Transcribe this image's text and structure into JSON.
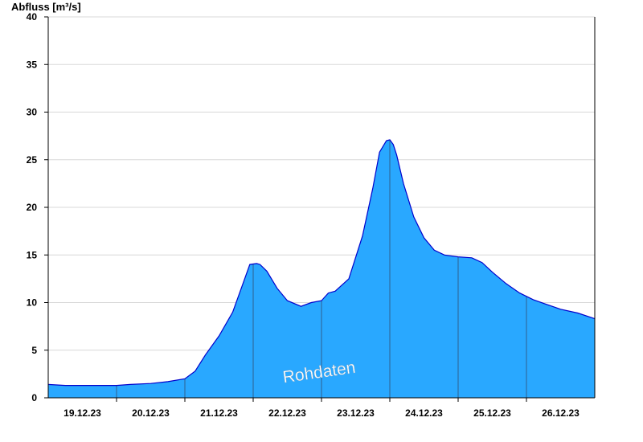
{
  "chart_data": {
    "type": "area",
    "ylabel": "Abfluss [m³/s]",
    "xlabel": "",
    "title": "",
    "ylim": [
      0,
      40
    ],
    "xlim": [
      0,
      8
    ],
    "yticks": [
      0,
      5,
      10,
      15,
      20,
      25,
      30,
      35,
      40
    ],
    "x_tick_labels": [
      "19.12.23",
      "20.12.23",
      "21.12.23",
      "22.12.23",
      "23.12.23",
      "24.12.23",
      "25.12.23",
      "26.12.23"
    ],
    "x_units": "days since start of plotted period",
    "grid": true,
    "annotation": "Rohdaten",
    "series": [
      {
        "x": [
          0,
          0.25,
          0.5,
          0.75,
          1.0,
          1.2,
          1.5,
          1.75,
          2.0,
          2.15,
          2.3,
          2.5,
          2.7,
          2.85,
          2.95,
          3.05,
          3.1,
          3.2,
          3.35,
          3.5,
          3.7,
          3.85,
          4.0,
          4.1,
          4.2,
          4.4,
          4.6,
          4.75,
          4.85,
          4.95,
          5.0,
          5.05,
          5.1,
          5.2,
          5.35,
          5.5,
          5.65,
          5.8,
          6.0,
          6.2,
          6.35,
          6.5,
          6.7,
          6.9,
          7.1,
          7.3,
          7.5,
          7.75,
          8.0
        ],
        "values": [
          1.4,
          1.3,
          1.3,
          1.3,
          1.3,
          1.4,
          1.5,
          1.7,
          2.0,
          2.8,
          4.5,
          6.5,
          9.0,
          12.0,
          14.0,
          14.1,
          14.0,
          13.3,
          11.5,
          10.2,
          9.6,
          10.0,
          10.2,
          11.0,
          11.2,
          12.5,
          17.0,
          22.0,
          25.8,
          27.0,
          27.1,
          26.6,
          25.5,
          22.5,
          19.0,
          16.8,
          15.5,
          15.0,
          14.8,
          14.7,
          14.2,
          13.2,
          12.0,
          11.0,
          10.3,
          9.8,
          9.3,
          8.9,
          8.3
        ]
      }
    ],
    "colors": {
      "fill": "#29a8ff",
      "line": "#0000cc",
      "axis": "#000000",
      "grid": "#d8d8d8",
      "day_divider": "#2f5f8f",
      "watermark": "#ffffff"
    }
  }
}
